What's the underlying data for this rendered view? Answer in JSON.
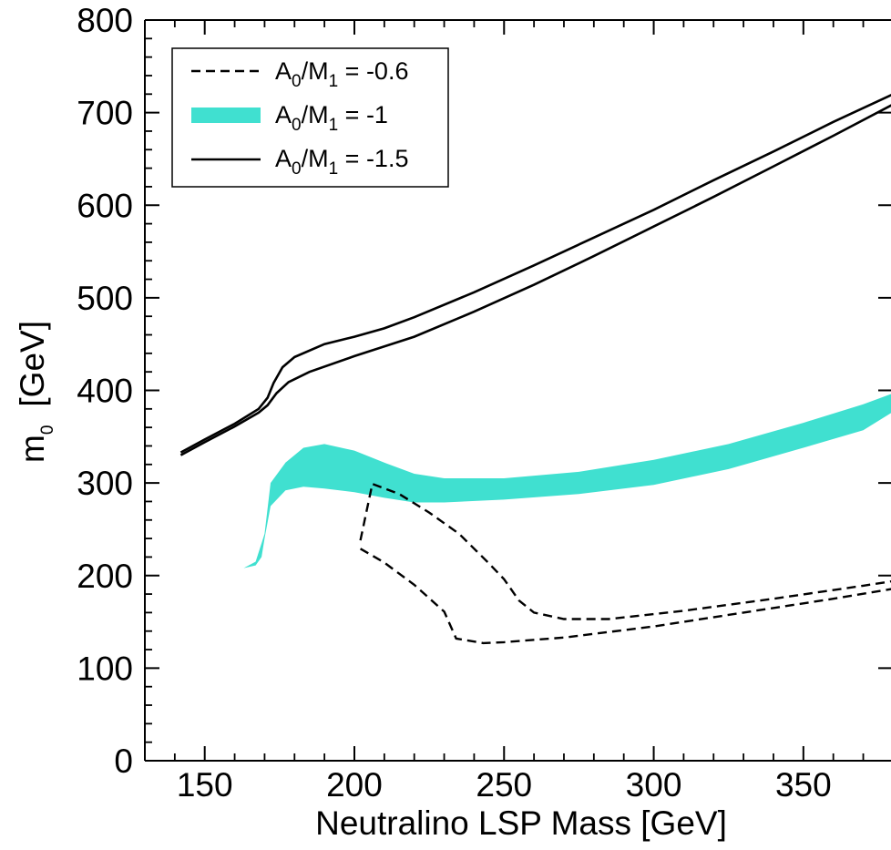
{
  "chart_data": {
    "type": "line",
    "xlabel": "Neutralino LSP Mass  [GeV]",
    "ylabel": "m",
    "ylabel_sub": "0",
    "ylabel_unit": "[GeV]",
    "xlim": [
      130,
      380
    ],
    "ylim": [
      0,
      800
    ],
    "xticks": [
      150,
      200,
      250,
      300,
      350
    ],
    "yticks": [
      0,
      100,
      200,
      300,
      400,
      500,
      600,
      700,
      800
    ],
    "grid": false,
    "legend_position": "top-left",
    "colors": {
      "band": "#40e0d0",
      "line": "#000000"
    },
    "legend": [
      {
        "style": "dashed",
        "prefix": "A",
        "sub1": "0",
        "mid": "/M",
        "sub2": "1",
        "suffix": " = -0.6"
      },
      {
        "style": "band",
        "prefix": "A",
        "sub1": "0",
        "mid": "/M",
        "sub2": "1",
        "suffix": " = -1"
      },
      {
        "style": "solid",
        "prefix": "A",
        "sub1": "0",
        "mid": "/M",
        "sub2": "1",
        "suffix": " = -1.5"
      }
    ],
    "series": [
      {
        "style": "solid",
        "upper": [
          [
            142,
            333
          ],
          [
            150,
            347
          ],
          [
            160,
            364
          ],
          [
            168,
            380
          ],
          [
            171,
            392
          ],
          [
            173,
            408
          ],
          [
            176,
            425
          ],
          [
            180,
            436
          ],
          [
            190,
            450
          ],
          [
            200,
            458
          ],
          [
            210,
            467
          ],
          [
            220,
            479
          ],
          [
            240,
            506
          ],
          [
            260,
            535
          ],
          [
            280,
            565
          ],
          [
            300,
            595
          ],
          [
            320,
            627
          ],
          [
            340,
            658
          ],
          [
            360,
            690
          ],
          [
            380,
            720
          ],
          [
            386,
            745
          ]
        ],
        "lower": [
          [
            142,
            330
          ],
          [
            150,
            344
          ],
          [
            160,
            361
          ],
          [
            168,
            376
          ],
          [
            171,
            384
          ],
          [
            174,
            397
          ],
          [
            178,
            409
          ],
          [
            185,
            420
          ],
          [
            200,
            437
          ],
          [
            220,
            458
          ],
          [
            240,
            485
          ],
          [
            260,
            514
          ],
          [
            280,
            545
          ],
          [
            300,
            577
          ],
          [
            320,
            609
          ],
          [
            340,
            642
          ],
          [
            360,
            675
          ],
          [
            380,
            709
          ],
          [
            386,
            738
          ]
        ]
      },
      {
        "style": "band",
        "upper": [
          [
            163,
            208
          ],
          [
            167,
            215
          ],
          [
            170,
            245
          ],
          [
            172,
            300
          ],
          [
            177,
            322
          ],
          [
            183,
            338
          ],
          [
            190,
            342
          ],
          [
            200,
            335
          ],
          [
            210,
            322
          ],
          [
            220,
            310
          ],
          [
            230,
            305
          ],
          [
            250,
            305
          ],
          [
            275,
            312
          ],
          [
            300,
            325
          ],
          [
            325,
            342
          ],
          [
            350,
            365
          ],
          [
            370,
            385
          ],
          [
            386,
            404
          ]
        ],
        "lower": [
          [
            163,
            208
          ],
          [
            167,
            211
          ],
          [
            169,
            220
          ],
          [
            170,
            240
          ],
          [
            172,
            275
          ],
          [
            177,
            292
          ],
          [
            183,
            296
          ],
          [
            190,
            294
          ],
          [
            200,
            290
          ],
          [
            210,
            284
          ],
          [
            220,
            279
          ],
          [
            230,
            279
          ],
          [
            250,
            282
          ],
          [
            275,
            288
          ],
          [
            300,
            298
          ],
          [
            325,
            315
          ],
          [
            350,
            338
          ],
          [
            370,
            357
          ],
          [
            386,
            389
          ]
        ]
      },
      {
        "style": "dashed",
        "upper": [
          [
            202,
            238
          ],
          [
            206,
            299
          ],
          [
            215,
            288
          ],
          [
            225,
            268
          ],
          [
            235,
            245
          ],
          [
            245,
            213
          ],
          [
            250,
            196
          ],
          [
            255,
            173
          ],
          [
            260,
            160
          ],
          [
            270,
            153
          ],
          [
            285,
            153
          ],
          [
            310,
            162
          ],
          [
            340,
            175
          ],
          [
            370,
            189
          ],
          [
            386,
            197
          ]
        ],
        "lower": [
          [
            202,
            229
          ],
          [
            210,
            214
          ],
          [
            220,
            190
          ],
          [
            230,
            161
          ],
          [
            234,
            132
          ],
          [
            243,
            127
          ],
          [
            250,
            128
          ],
          [
            270,
            133
          ],
          [
            300,
            145
          ],
          [
            330,
            160
          ],
          [
            360,
            175
          ],
          [
            386,
            189
          ]
        ]
      }
    ]
  }
}
